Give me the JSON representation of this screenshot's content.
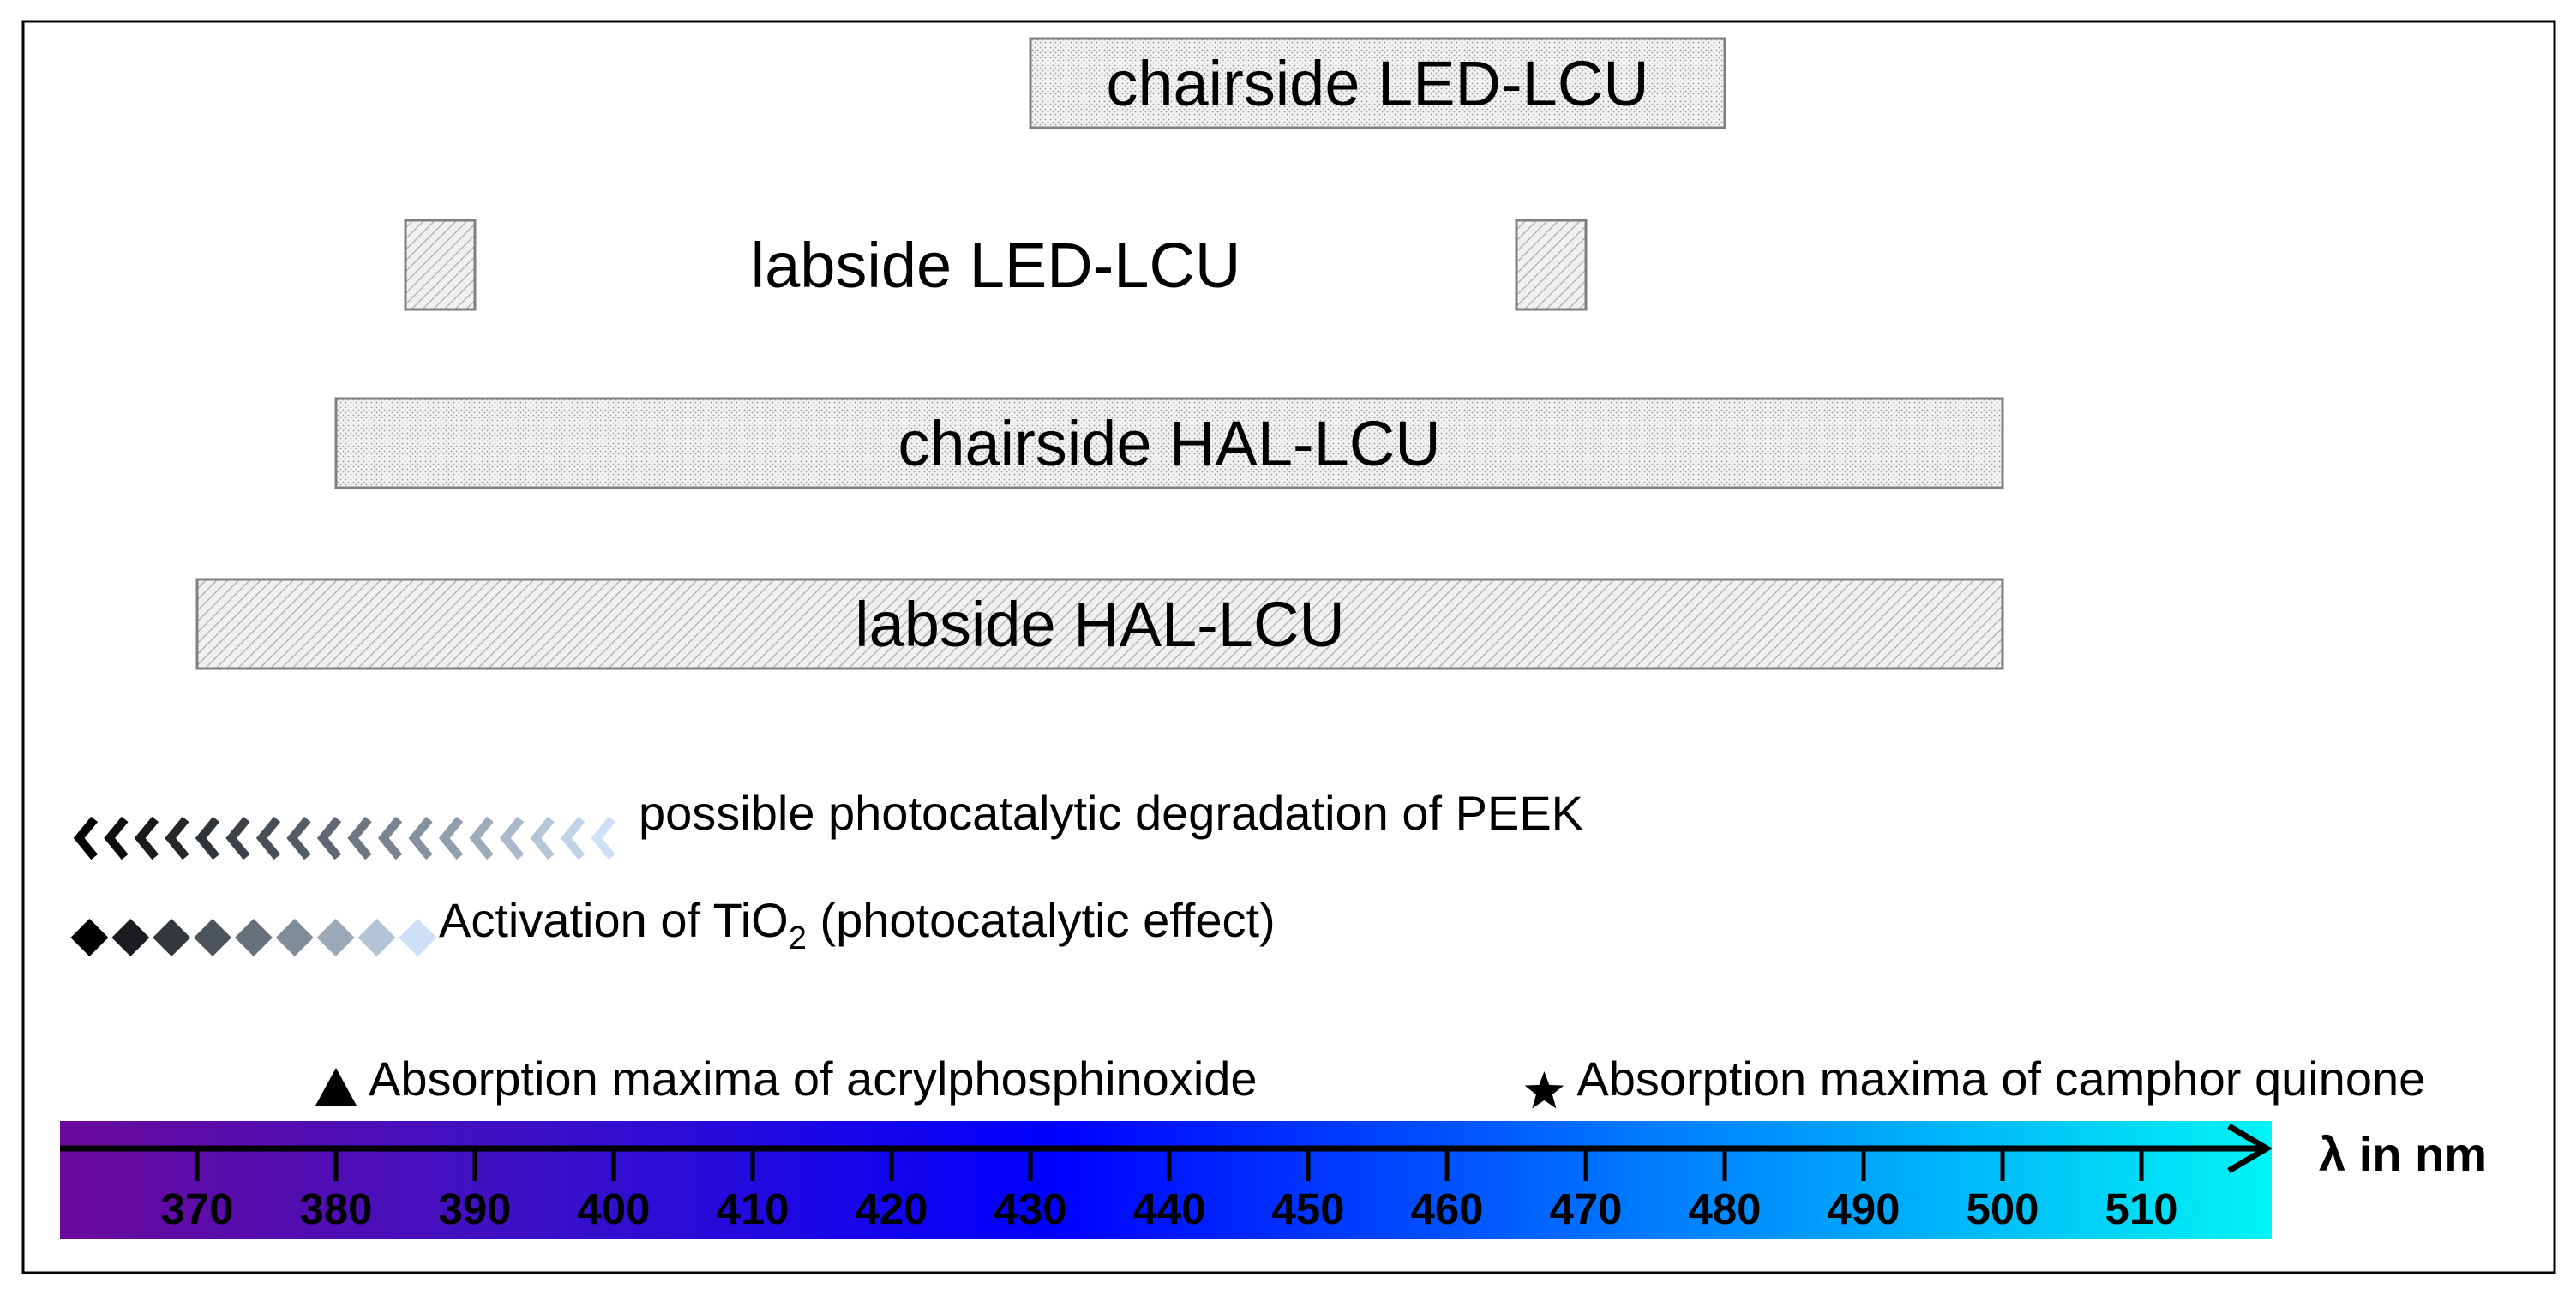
{
  "chart_data": {
    "type": "bar",
    "subtype": "horizontal-range",
    "x_unit_label": "λ in nm",
    "x_ticks": [
      370,
      380,
      390,
      400,
      410,
      420,
      430,
      440,
      450,
      460,
      470,
      480,
      490,
      500,
      510
    ],
    "x_range": [
      362,
      521
    ],
    "ranges": [
      {
        "label": "chairside LED-LCU",
        "segments": [
          [
            430,
            480
          ]
        ],
        "pattern": "dots"
      },
      {
        "label": "labside LED-LCU",
        "segments": [
          [
            385,
            390
          ],
          [
            465,
            470
          ]
        ],
        "pattern": "hatch"
      },
      {
        "label": "chairside HAL-LCU",
        "segments": [
          [
            380,
            500
          ]
        ],
        "pattern": "dots"
      },
      {
        "label": "labside HAL-LCU",
        "segments": [
          [
            370,
            500
          ]
        ],
        "pattern": "hatch"
      }
    ],
    "gradient_indicators": [
      {
        "label": "possible photocatalytic degradation of PEEK",
        "marker": "chevron-left",
        "from": 361,
        "to": 400
      },
      {
        "label_prefix": "Activation of TiO",
        "label_subscript": "2",
        "label_suffix": " (photocatalytic effect)",
        "marker": "diamond",
        "from": 362,
        "to": 387
      }
    ],
    "markers": [
      {
        "label": "Absorption maxima of acrylphosphinoxide",
        "symbol": "triangle",
        "x": 380
      },
      {
        "label": "Absorption maxima of camphor quinone",
        "symbol": "star",
        "x": 467
      }
    ],
    "spectrum_colors": [
      "#6a0a9c",
      "#3a10c8",
      "#0000ff",
      "#007cff",
      "#00f4f4"
    ],
    "grid": false
  }
}
